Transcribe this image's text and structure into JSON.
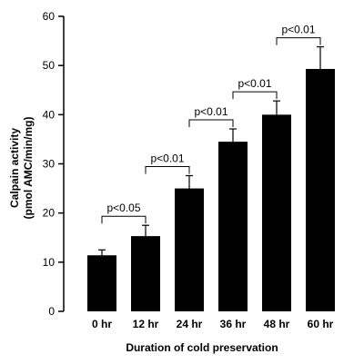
{
  "chart_data": {
    "type": "bar",
    "categories": [
      "0 hr",
      "12 hr",
      "24 hr",
      "36 hr",
      "48 hr",
      "60 hr"
    ],
    "values": [
      11.4,
      15.3,
      25.0,
      34.5,
      40.0,
      49.3
    ],
    "errors": [
      1.1,
      2.2,
      2.6,
      2.6,
      2.8,
      4.5
    ],
    "xlabel": "Duration of cold preservation",
    "ylabel_lines": [
      "Calpain activity",
      "(pmol AMC/min/mg)"
    ],
    "ylim": [
      0,
      60
    ],
    "yticks": [
      0,
      10,
      20,
      30,
      40,
      50,
      60
    ],
    "bar_color": "#000000",
    "grid": false,
    "comparisons": [
      {
        "from": 0,
        "to": 1,
        "label": "p<0.05"
      },
      {
        "from": 1,
        "to": 2,
        "label": "p<0.01"
      },
      {
        "from": 2,
        "to": 3,
        "label": "p<0.01"
      },
      {
        "from": 3,
        "to": 4,
        "label": "p<0.01"
      },
      {
        "from": 4,
        "to": 5,
        "label": "p<0.01"
      }
    ]
  }
}
